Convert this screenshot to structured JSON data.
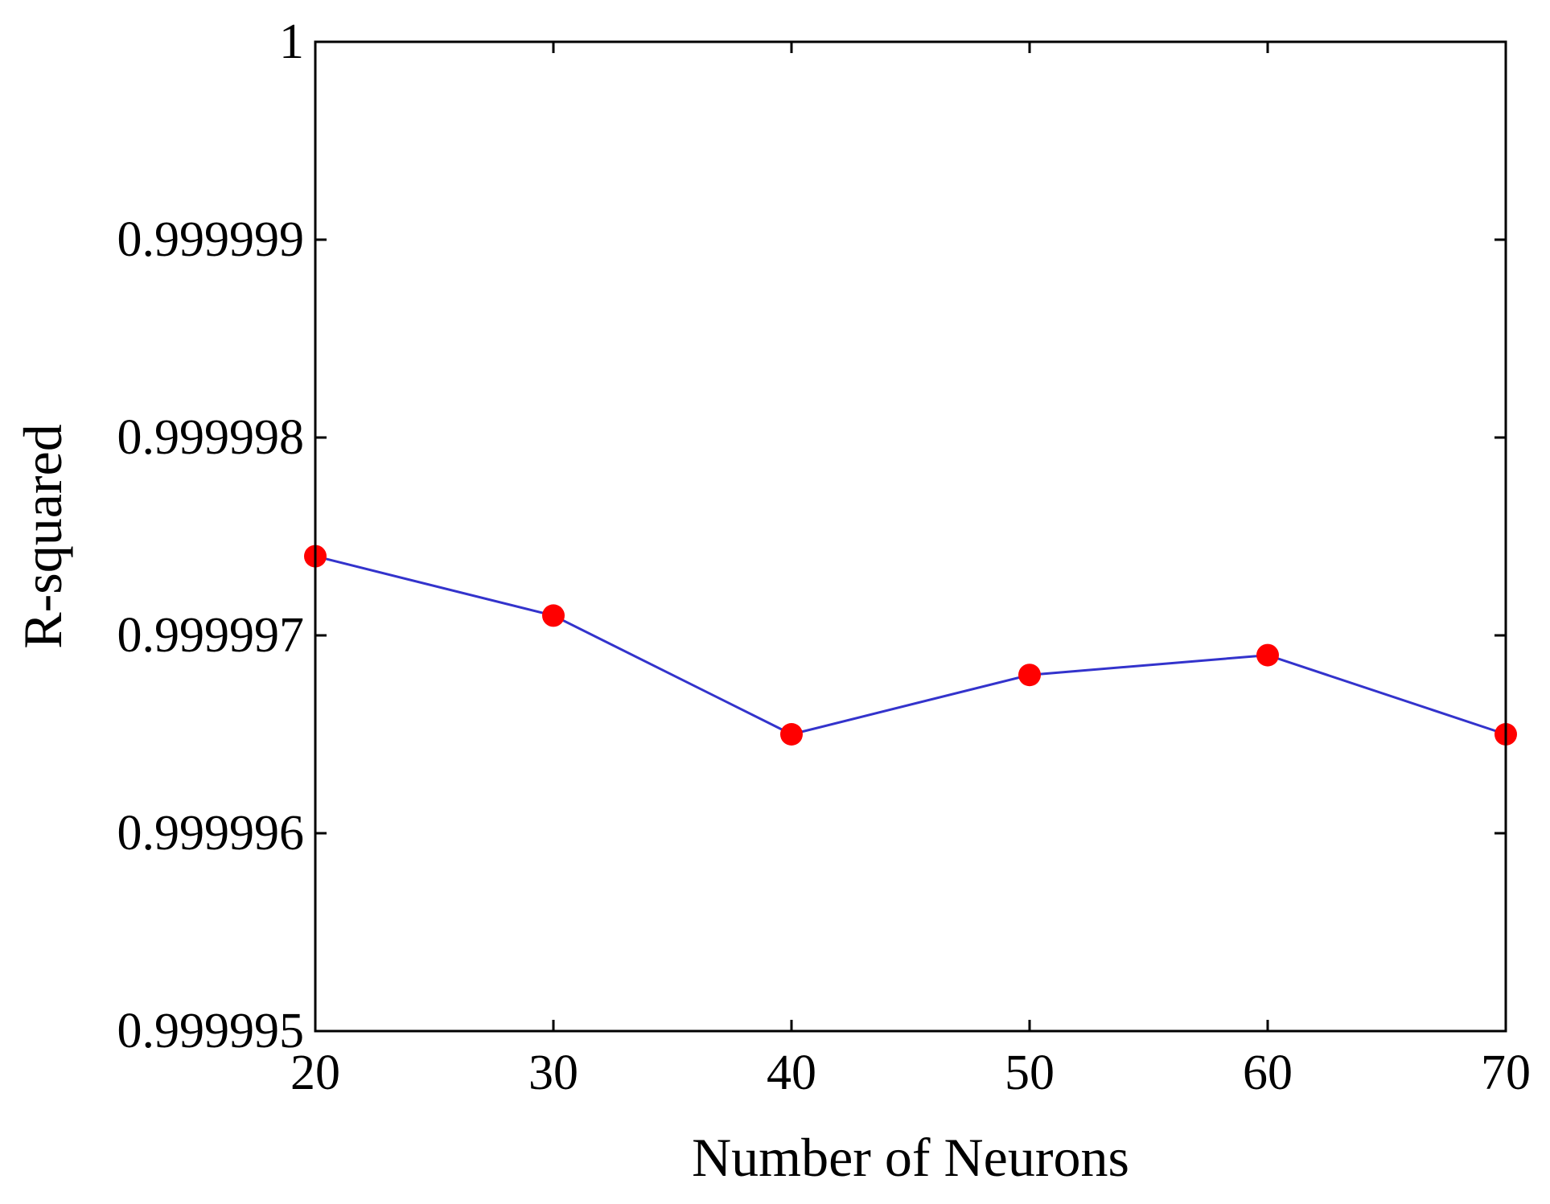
{
  "chart_data": {
    "type": "line",
    "title": "",
    "xlabel": "Number of Neurons",
    "ylabel": "R-squared",
    "xlim": [
      20,
      70
    ],
    "ylim": [
      0.999995,
      1
    ],
    "xticks": [
      20,
      30,
      40,
      50,
      60,
      70
    ],
    "xtick_labels": [
      "20",
      "30",
      "40",
      "50",
      "60",
      "70"
    ],
    "yticks": [
      0.999995,
      0.999996,
      0.999997,
      0.999998,
      0.999999,
      1
    ],
    "ytick_labels": [
      "0.999995",
      "0.999996",
      "0.999997",
      "0.999998",
      "0.999999",
      "1"
    ],
    "grid": false,
    "legend": "none",
    "line_color": "#3333cc",
    "marker_color": "#ff0000",
    "series": [
      {
        "x": [
          20,
          30,
          40,
          50,
          60,
          70
        ],
        "values": [
          0.9999974,
          0.9999971,
          0.9999965,
          0.9999968,
          0.9999969,
          0.9999965
        ]
      }
    ]
  }
}
